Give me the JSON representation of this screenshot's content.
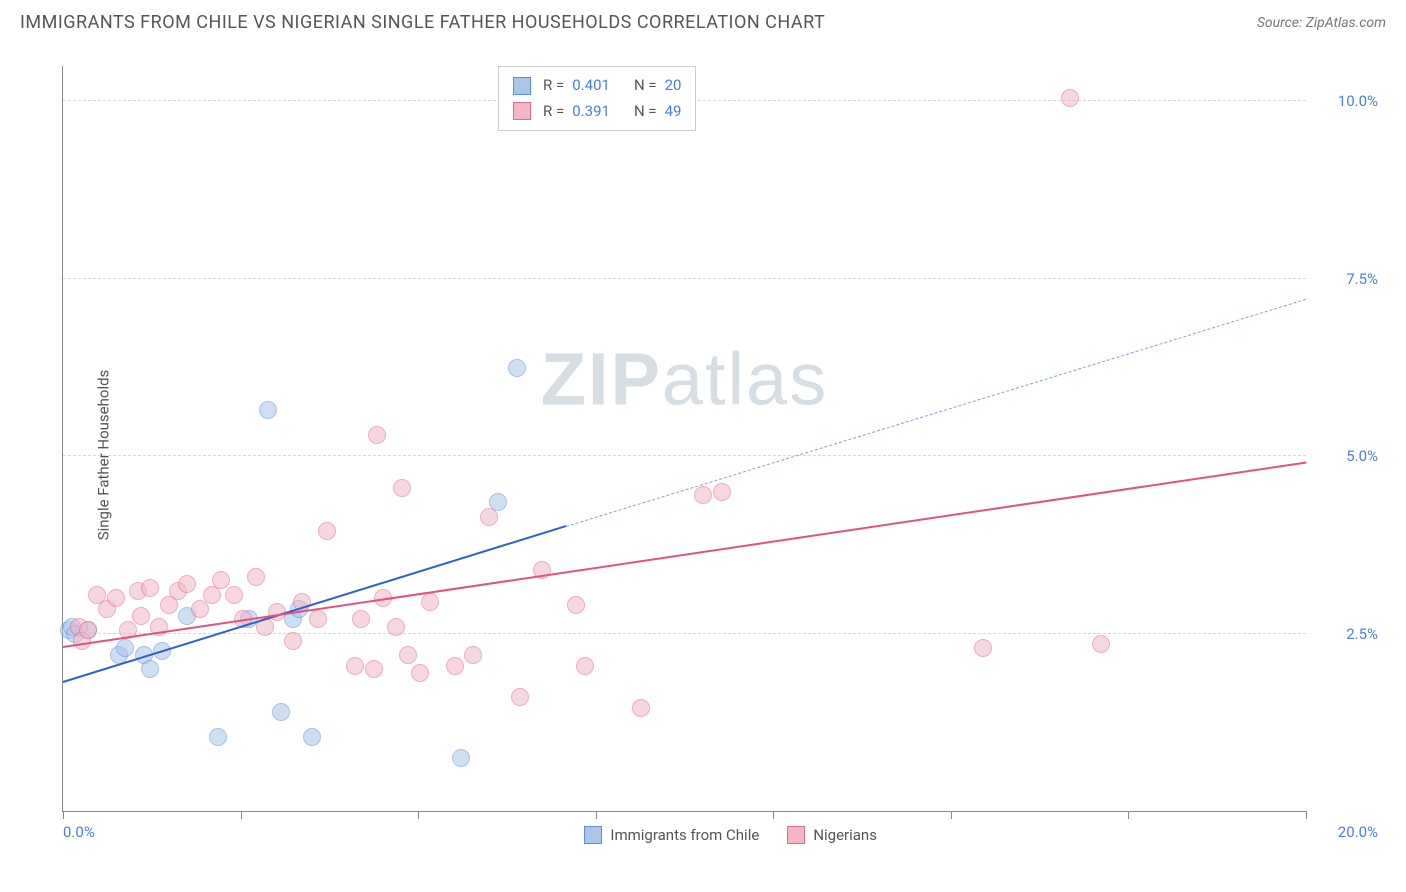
{
  "header": {
    "title": "IMMIGRANTS FROM CHILE VS NIGERIAN SINGLE FATHER HOUSEHOLDS CORRELATION CHART",
    "source": "Source: ZipAtlas.com"
  },
  "chart": {
    "type": "scatter",
    "ylabel": "Single Father Households",
    "xlim": [
      0,
      20
    ],
    "ylim": [
      0,
      10.5
    ],
    "x_axis_label_min": "0.0%",
    "x_axis_label_max": "20.0%",
    "y_ticks": [
      {
        "v": 2.5,
        "label": "2.5%"
      },
      {
        "v": 5.0,
        "label": "5.0%"
      },
      {
        "v": 7.5,
        "label": "7.5%"
      },
      {
        "v": 10.0,
        "label": "10.0%"
      }
    ],
    "x_tick_positions": [
      0,
      2.86,
      5.71,
      8.57,
      11.43,
      14.29,
      17.14,
      20
    ],
    "background_color": "#ffffff",
    "grid_color": "#d8d8d8",
    "axis_color": "#888888",
    "tick_label_color": "#4a7fd8",
    "marker_radius": 9,
    "marker_opacity": 0.55,
    "watermark_text_a": "ZIP",
    "watermark_text_b": "atlas",
    "watermark_color": "#d6dde3",
    "series": [
      {
        "name": "Immigrants from Chile",
        "fill": "#a9c6ea",
        "stroke": "#5b8fd6",
        "trend_color": "#2e64c9",
        "trend_dash_color": "#7aa2e0",
        "R": "0.401",
        "N": "20",
        "trend": {
          "x1": 0,
          "y1": 1.8,
          "x2_solid": 8.1,
          "y2_solid": 4.0,
          "x2_dash": 20,
          "y2_dash": 7.2
        },
        "points": [
          [
            0.1,
            2.55
          ],
          [
            0.15,
            2.6
          ],
          [
            0.2,
            2.5
          ],
          [
            0.4,
            2.55
          ],
          [
            0.9,
            2.2
          ],
          [
            1.0,
            2.3
          ],
          [
            1.3,
            2.2
          ],
          [
            1.4,
            2.0
          ],
          [
            1.6,
            2.25
          ],
          [
            2.0,
            2.75
          ],
          [
            2.5,
            1.05
          ],
          [
            3.0,
            2.7
          ],
          [
            3.5,
            1.4
          ],
          [
            3.7,
            2.7
          ],
          [
            3.8,
            2.85
          ],
          [
            3.3,
            5.65
          ],
          [
            4.0,
            1.05
          ],
          [
            6.4,
            0.75
          ],
          [
            7.0,
            4.35
          ],
          [
            7.3,
            6.25
          ]
        ]
      },
      {
        "name": "Nigerians",
        "fill": "#f2b6c6",
        "stroke": "#e06a8f",
        "trend_color": "#e0537e",
        "R": "0.391",
        "N": "49",
        "trend": {
          "x1": 0,
          "y1": 2.3,
          "x2_solid": 20,
          "y2_solid": 4.9
        },
        "points": [
          [
            0.25,
            2.6
          ],
          [
            0.3,
            2.4
          ],
          [
            0.4,
            2.55
          ],
          [
            0.55,
            3.05
          ],
          [
            0.7,
            2.85
          ],
          [
            0.85,
            3.0
          ],
          [
            1.05,
            2.55
          ],
          [
            1.2,
            3.1
          ],
          [
            1.25,
            2.75
          ],
          [
            1.4,
            3.15
          ],
          [
            1.55,
            2.6
          ],
          [
            1.7,
            2.9
          ],
          [
            1.85,
            3.1
          ],
          [
            2.0,
            3.2
          ],
          [
            2.2,
            2.85
          ],
          [
            2.4,
            3.05
          ],
          [
            2.55,
            3.25
          ],
          [
            2.75,
            3.05
          ],
          [
            2.9,
            2.7
          ],
          [
            3.1,
            3.3
          ],
          [
            3.25,
            2.6
          ],
          [
            3.45,
            2.8
          ],
          [
            3.7,
            2.4
          ],
          [
            3.85,
            2.95
          ],
          [
            4.1,
            2.7
          ],
          [
            4.25,
            3.95
          ],
          [
            4.8,
            2.7
          ],
          [
            4.7,
            2.05
          ],
          [
            5.0,
            2.0
          ],
          [
            5.15,
            3.0
          ],
          [
            5.35,
            2.6
          ],
          [
            5.55,
            2.2
          ],
          [
            5.75,
            1.95
          ],
          [
            5.9,
            2.95
          ],
          [
            5.05,
            5.3
          ],
          [
            5.45,
            4.55
          ],
          [
            6.3,
            2.05
          ],
          [
            6.6,
            2.2
          ],
          [
            6.85,
            4.15
          ],
          [
            7.35,
            1.6
          ],
          [
            7.7,
            3.4
          ],
          [
            8.25,
            2.9
          ],
          [
            8.4,
            2.05
          ],
          [
            9.3,
            1.45
          ],
          [
            10.3,
            4.45
          ],
          [
            10.6,
            4.5
          ],
          [
            14.8,
            2.3
          ],
          [
            16.7,
            2.35
          ],
          [
            16.2,
            10.05
          ]
        ]
      }
    ],
    "legend_bottom": [
      {
        "label": "Immigrants from Chile",
        "fill": "#a9c6ea",
        "stroke": "#5b8fd6"
      },
      {
        "label": "Nigerians",
        "fill": "#f2b6c6",
        "stroke": "#e06a8f"
      }
    ]
  }
}
